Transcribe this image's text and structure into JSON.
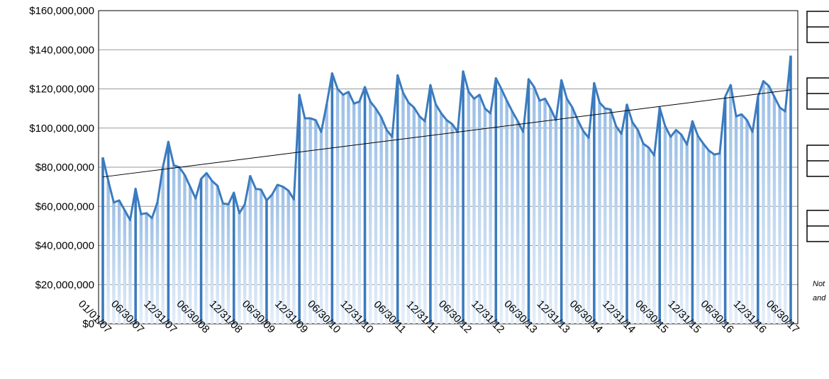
{
  "chart_data": {
    "type": "bar-line",
    "categories": [
      "01/01/07",
      null,
      null,
      null,
      null,
      null,
      "06/30/07",
      null,
      null,
      null,
      null,
      null,
      "12/31/07",
      null,
      null,
      null,
      null,
      null,
      "06/30/08",
      null,
      null,
      null,
      null,
      null,
      "12/31/08",
      null,
      null,
      null,
      null,
      null,
      "06/30/09",
      null,
      null,
      null,
      null,
      null,
      "12/31/09",
      null,
      null,
      null,
      null,
      null,
      "06/30/10",
      null,
      null,
      null,
      null,
      null,
      "12/31/10",
      null,
      null,
      null,
      null,
      null,
      "06/30/11",
      null,
      null,
      null,
      null,
      null,
      "12/31/11",
      null,
      null,
      null,
      null,
      null,
      "06/30/12",
      null,
      null,
      null,
      null,
      null,
      "12/31/12",
      null,
      null,
      null,
      null,
      null,
      "06/30/13",
      null,
      null,
      null,
      null,
      null,
      "12/31/13",
      null,
      null,
      null,
      null,
      null,
      "06/30/14",
      null,
      null,
      null,
      null,
      null,
      "12/31/14",
      null,
      null,
      null,
      null,
      null,
      "06/30/15",
      null,
      null,
      null,
      null,
      null,
      "12/31/15",
      null,
      null,
      null,
      null,
      null,
      "06/30/16",
      null,
      null,
      null,
      null,
      null,
      "12/31/16",
      null,
      null,
      null,
      null,
      null,
      "06/30/17"
    ],
    "values": [
      85000000,
      73000000,
      62000000,
      63000000,
      58000000,
      53000000,
      69000000,
      56000000,
      56500000,
      54000000,
      62000000,
      80000000,
      93000000,
      81000000,
      80000000,
      76000000,
      70000000,
      64000000,
      74000000,
      77000000,
      73000000,
      70500000,
      61500000,
      61000000,
      67000000,
      56500000,
      61000000,
      75500000,
      69000000,
      68500000,
      63000000,
      66000000,
      71000000,
      70000000,
      68000000,
      63500000,
      117000000,
      105000000,
      105000000,
      104000000,
      98000000,
      112000000,
      128000000,
      120000000,
      117000000,
      118500000,
      112500000,
      113500000,
      121000000,
      113500000,
      110000000,
      105500000,
      99000000,
      95500000,
      127000000,
      118000000,
      113000000,
      110500000,
      106000000,
      103500000,
      122000000,
      112000000,
      107500000,
      104000000,
      102000000,
      98000000,
      129000000,
      118500000,
      115000000,
      117000000,
      110000000,
      107500000,
      125500000,
      120000000,
      114000000,
      108500000,
      103500000,
      98000000,
      125000000,
      121000000,
      114000000,
      115000000,
      110000000,
      104000000,
      124500000,
      115000000,
      110500000,
      104000000,
      98500000,
      95000000,
      123000000,
      113000000,
      110000000,
      109500000,
      101000000,
      97000000,
      112000000,
      103000000,
      99000000,
      92000000,
      90000000,
      86000000,
      110500000,
      101000000,
      95500000,
      99000000,
      96500000,
      91500000,
      103500000,
      96000000,
      92000000,
      88500000,
      86500000,
      87000000,
      116000000,
      122000000,
      106000000,
      107000000,
      104000000,
      98000000,
      116000000,
      124000000,
      121500000,
      116000000,
      110500000,
      108500000,
      137000000
    ],
    "color": "#3b7bbf",
    "bar_color": "#a9c9ea",
    "trendline": {
      "values": [
        75000000,
        119500000
      ],
      "color": "#000000"
    },
    "ylim": [
      0,
      160000000
    ],
    "yticks": [
      {
        "value": 0,
        "label": "$0"
      },
      {
        "value": 20000000,
        "label": "$20,000,000"
      },
      {
        "value": 40000000,
        "label": "$40,000,000"
      },
      {
        "value": 60000000,
        "label": "$60,000,000"
      },
      {
        "value": 80000000,
        "label": "$80,000,000"
      },
      {
        "value": 100000000,
        "label": "$100,000,000"
      },
      {
        "value": 120000000,
        "label": "$120,000,000"
      },
      {
        "value": 140000000,
        "label": "$140,000,000"
      },
      {
        "value": 160000000,
        "label": "$160,000,000"
      }
    ],
    "grid": true,
    "notes": [
      "Not",
      "and"
    ]
  }
}
